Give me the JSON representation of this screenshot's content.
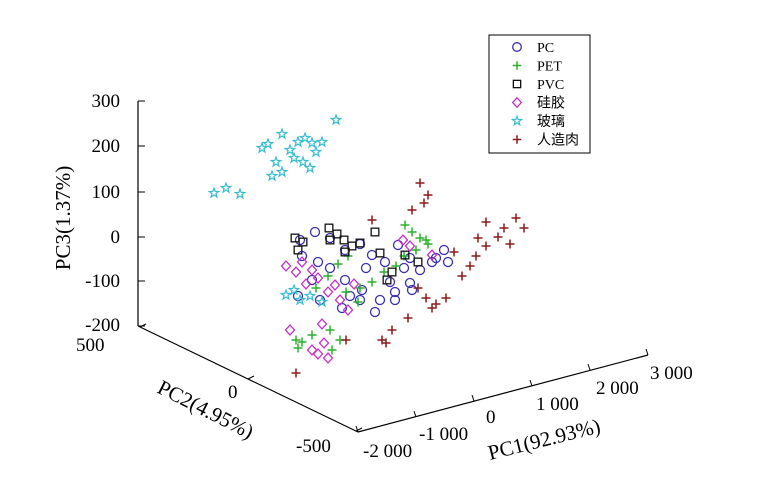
{
  "chart_data": {
    "type": "scatter3d",
    "axes": {
      "x": {
        "label": "PC1(92.93%)",
        "range": [
          -2000,
          3000
        ],
        "ticks": [
          "-2 000",
          "-1 000",
          "0",
          "1 000",
          "2 000",
          "3 000"
        ]
      },
      "y": {
        "label": "PC2(4.95%)",
        "range": [
          -500,
          500
        ],
        "ticks": [
          "500",
          "0",
          "-500"
        ]
      },
      "z": {
        "label": "PC3(1.37%)",
        "range": [
          -200,
          300
        ],
        "ticks": [
          "300",
          "200",
          "100",
          "0",
          "-100",
          "-200"
        ]
      }
    },
    "legend_position": "top-right",
    "grid": false,
    "series": [
      {
        "name": "PC",
        "color": "#3a2fb0",
        "marker": "circle",
        "points": [
          [
            300,
            240
          ],
          [
            315,
            232
          ],
          [
            330,
            238
          ],
          [
            345,
            250
          ],
          [
            360,
            244
          ],
          [
            372,
            255
          ],
          [
            385,
            262
          ],
          [
            398,
            245
          ],
          [
            410,
            258
          ],
          [
            420,
            270
          ],
          [
            432,
            262
          ],
          [
            444,
            250
          ],
          [
            410,
            283
          ],
          [
            395,
            292
          ],
          [
            380,
            300
          ],
          [
            362,
            290
          ],
          [
            345,
            280
          ],
          [
            330,
            268
          ],
          [
            312,
            280
          ],
          [
            298,
            296
          ],
          [
            320,
            300
          ],
          [
            342,
            308
          ],
          [
            360,
            300
          ],
          [
            375,
            312
          ],
          [
            395,
            300
          ],
          [
            412,
            290
          ],
          [
            436,
            258
          ],
          [
            448,
            262
          ],
          [
            404,
            268
          ],
          [
            390,
            282
          ],
          [
            302,
            256
          ],
          [
            318,
            262
          ],
          [
            366,
            268
          ],
          [
            350,
            296
          ]
        ]
      },
      {
        "name": "PET",
        "color": "#2bb02b",
        "marker": "plus",
        "points": [
          [
            405,
            225
          ],
          [
            412,
            232
          ],
          [
            420,
            238
          ],
          [
            428,
            244
          ],
          [
            416,
            250
          ],
          [
            404,
            256
          ],
          [
            396,
            266
          ],
          [
            384,
            272
          ],
          [
            372,
            282
          ],
          [
            360,
            288
          ],
          [
            348,
            256
          ],
          [
            338,
            264
          ],
          [
            328,
            276
          ],
          [
            316,
            288
          ],
          [
            346,
            292
          ],
          [
            358,
            302
          ],
          [
            330,
            330
          ],
          [
            340,
            340
          ],
          [
            332,
            350
          ],
          [
            312,
            335
          ],
          [
            302,
            342
          ],
          [
            296,
            340
          ],
          [
            298,
            348
          ],
          [
            426,
            240
          ]
        ]
      },
      {
        "name": "PVC",
        "color": "#111111",
        "marker": "square",
        "points": [
          [
            295,
            238
          ],
          [
            303,
            242
          ],
          [
            298,
            250
          ],
          [
            329,
            228
          ],
          [
            337,
            234
          ],
          [
            344,
            240
          ],
          [
            352,
            246
          ],
          [
            360,
            243
          ],
          [
            330,
            240
          ],
          [
            345,
            252
          ],
          [
            375,
            232
          ],
          [
            380,
            253
          ],
          [
            392,
            272
          ],
          [
            387,
            280
          ],
          [
            405,
            255
          ],
          [
            418,
            262
          ]
        ]
      },
      {
        "name": "硅胶",
        "color": "#c42fc4",
        "marker": "diamond",
        "points": [
          [
            286,
            266
          ],
          [
            302,
            262
          ],
          [
            312,
            270
          ],
          [
            318,
            278
          ],
          [
            306,
            284
          ],
          [
            296,
            272
          ],
          [
            328,
            292
          ],
          [
            340,
            300
          ],
          [
            348,
            310
          ],
          [
            312,
            350
          ],
          [
            324,
            343
          ],
          [
            318,
            354
          ],
          [
            328,
            358
          ],
          [
            290,
            330
          ],
          [
            322,
            324
          ],
          [
            403,
            240
          ],
          [
            410,
            246
          ],
          [
            432,
            255
          ],
          [
            335,
            285
          ],
          [
            354,
            284
          ]
        ]
      },
      {
        "name": "玻璃",
        "color": "#38bcd0",
        "marker": "star",
        "points": [
          [
            214,
            193
          ],
          [
            226,
            188
          ],
          [
            240,
            194
          ],
          [
            262,
            148
          ],
          [
            268,
            144
          ],
          [
            282,
            134
          ],
          [
            290,
            150
          ],
          [
            298,
            142
          ],
          [
            305,
            138
          ],
          [
            312,
            143
          ],
          [
            316,
            152
          ],
          [
            322,
            142
          ],
          [
            276,
            162
          ],
          [
            294,
            158
          ],
          [
            303,
            162
          ],
          [
            310,
            168
          ],
          [
            272,
            176
          ],
          [
            282,
            172
          ],
          [
            336,
            120
          ],
          [
            294,
            290
          ],
          [
            300,
            300
          ],
          [
            310,
            296
          ],
          [
            322,
            302
          ],
          [
            286,
            295
          ]
        ]
      },
      {
        "name": "人造肉",
        "color": "#8b1a1a",
        "marker": "plus",
        "points": [
          [
            420,
            183
          ],
          [
            428,
            195
          ],
          [
            424,
            203
          ],
          [
            372,
            220
          ],
          [
            412,
            210
          ],
          [
            486,
            222
          ],
          [
            498,
            237
          ],
          [
            504,
            228
          ],
          [
            516,
            218
          ],
          [
            524,
            228
          ],
          [
            510,
            244
          ],
          [
            478,
            238
          ],
          [
            470,
            266
          ],
          [
            462,
            276
          ],
          [
            454,
            252
          ],
          [
            446,
            298
          ],
          [
            436,
            304
          ],
          [
            426,
            298
          ],
          [
            432,
            308
          ],
          [
            418,
            288
          ],
          [
            408,
            318
          ],
          [
            392,
            330
          ],
          [
            386,
            343
          ],
          [
            382,
            340
          ],
          [
            346,
            340
          ],
          [
            296,
            373
          ],
          [
            476,
            256
          ],
          [
            486,
            246
          ]
        ]
      }
    ]
  }
}
